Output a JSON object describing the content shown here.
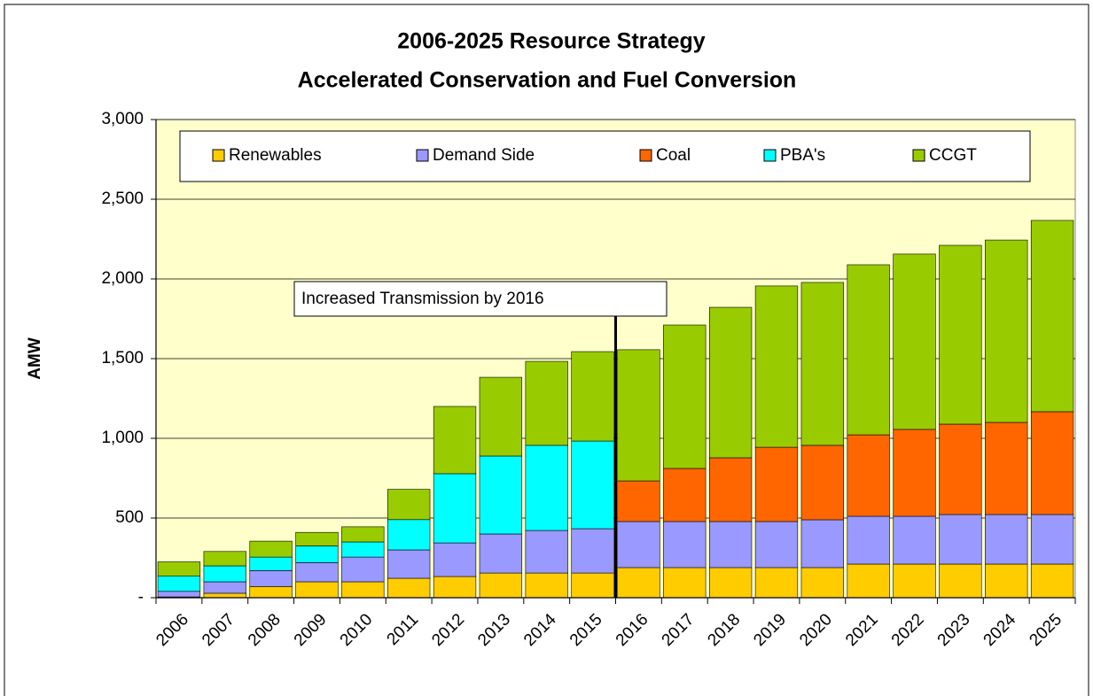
{
  "chart_data": {
    "type": "stacked-bar",
    "title": "2006-2025 Resource Strategy",
    "subtitle": "Accelerated Conservation and Fuel Conversion",
    "y_label": "AMW",
    "annotation": "Increased Transmission by 2016",
    "categories": [
      "2006",
      "2007",
      "2008",
      "2009",
      "2010",
      "2011",
      "2012",
      "2013",
      "2014",
      "2015",
      "2016",
      "2017",
      "2018",
      "2019",
      "2020",
      "2021",
      "2022",
      "2023",
      "2024",
      "2025"
    ],
    "series": [
      {
        "name": "Renewables",
        "color": "#ffcc00",
        "values": [
          5,
          28,
          70,
          100,
          100,
          122,
          133,
          155,
          155,
          155,
          189,
          189,
          189,
          189,
          189,
          211,
          211,
          211,
          211,
          211
        ]
      },
      {
        "name": "Demand Side",
        "color": "#9999ff",
        "values": [
          35,
          72,
          100,
          120,
          155,
          178,
          211,
          245,
          267,
          278,
          289,
          289,
          289,
          289,
          300,
          300,
          300,
          311,
          311,
          311
        ]
      },
      {
        "name": "Coal",
        "color": "#ff6600",
        "values": [
          0,
          0,
          0,
          0,
          0,
          0,
          0,
          0,
          0,
          0,
          255,
          333,
          400,
          466,
          467,
          511,
          545,
          567,
          578,
          645
        ]
      },
      {
        "name": "PBA's",
        "color": "#00ffff",
        "values": [
          95,
          100,
          85,
          105,
          95,
          190,
          434,
          489,
          534,
          550,
          0,
          0,
          0,
          0,
          0,
          0,
          0,
          0,
          0,
          0
        ]
      },
      {
        "name": "CCGT",
        "color": "#99cc00",
        "values": [
          90,
          90,
          100,
          85,
          95,
          190,
          422,
          494,
          527,
          561,
          823,
          900,
          944,
          1012,
          1022,
          1067,
          1100,
          1122,
          1144,
          1200
        ]
      }
    ],
    "ylim": [
      0,
      3000
    ],
    "yticks": [
      {
        "value": 0,
        "label": "-"
      },
      500,
      {
        "value": 1000,
        "label": "1,000"
      },
      {
        "value": 1500,
        "label": "1,500"
      },
      {
        "value": 2000,
        "label": "2,000"
      },
      {
        "value": 2500,
        "label": "2,500"
      },
      {
        "value": 3000,
        "label": "3,000"
      }
    ],
    "grid": true,
    "background": "#ffffcc"
  }
}
